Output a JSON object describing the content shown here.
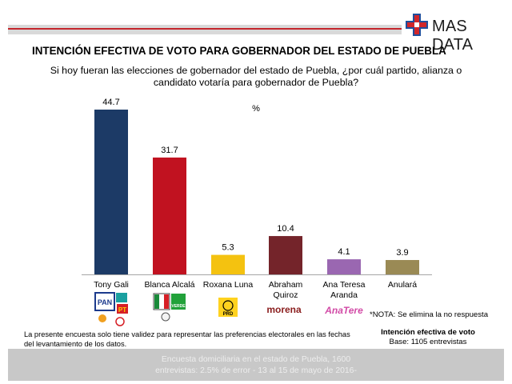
{
  "brand": {
    "name": "MAS DATA",
    "accent": "#d1262a",
    "accent_blue": "#1f4e9c"
  },
  "title": "INTENCIÓN EFECTIVA DE VOTO PARA GOBERNADOR DEL ESTADO DE PUEBLA",
  "subtitle": "Si hoy fueran las elecciones de gobernador del estado de Puebla, ¿por cuál partido, alianza o candidato votaría para gobernador de Puebla?",
  "chart_data": {
    "type": "bar",
    "unit_label": "%",
    "categories": [
      [
        "Tony Gali"
      ],
      [
        "Blanca Alcalá"
      ],
      [
        "Roxana Luna"
      ],
      [
        "Abraham",
        "Quiroz"
      ],
      [
        "Ana Teresa",
        "Aranda"
      ],
      [
        "Anulará"
      ]
    ],
    "values": [
      44.7,
      31.7,
      5.3,
      10.4,
      4.1,
      3.9
    ],
    "value_labels": [
      "44.7",
      "31.7",
      "5.3",
      "10.4",
      "4.1",
      "3.9"
    ],
    "colors": [
      "#1c3a66",
      "#c11220",
      "#f4c210",
      "#74242a",
      "#9a67b1",
      "#9a8a55"
    ],
    "ylim": [
      0,
      44.7
    ]
  },
  "party_logos": {
    "tony_gali": [
      "PAN",
      "PT",
      "PSI"
    ],
    "blanca_alcala": [
      "PRI",
      "VERDE"
    ],
    "roxana_luna": [
      "PRD"
    ],
    "abraham_quiroz": [
      "morena"
    ],
    "ana_teresa_aranda": [
      "AnaTere"
    ]
  },
  "notes": {
    "left": "La presente encuesta solo tiene validez para representar las preferencias electorales en las fechas del levantamiento de los datos.",
    "right": "*NOTA: Se elimina la no respuesta",
    "base_title": "Intención efectiva de voto",
    "base_value": "Base: 1105 entrevistas"
  },
  "footer": {
    "line1": "Encuesta domiciliaria en el estado de Puebla, 1600",
    "line2": "entrevistas: 2.5% de error - 13 al 15 de mayo de 2016-"
  }
}
